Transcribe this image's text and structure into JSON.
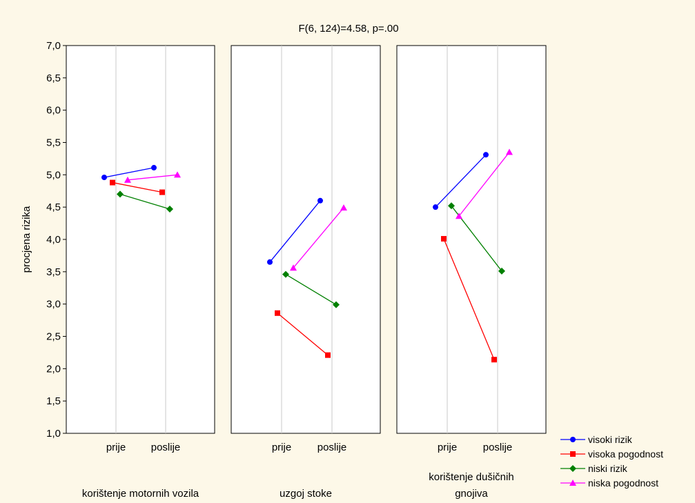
{
  "chart_data": {
    "type": "line",
    "title": "F(6, 124)=4.58, p=.00",
    "ylabel": "procjena rizika",
    "ylim": [
      1.0,
      7.0
    ],
    "yticks": [
      "1,0",
      "1,5",
      "2,0",
      "2,5",
      "3,0",
      "3,5",
      "4,0",
      "4,5",
      "5,0",
      "5,5",
      "6,0",
      "6,5",
      "7,0"
    ],
    "grid": "vertical",
    "legend_position": "bottom-right",
    "categories": [
      "prije",
      "poslije"
    ],
    "panels": [
      {
        "label": "korištenje motornih vozila",
        "series": [
          {
            "name": "visoki rizik",
            "values": [
              4.96,
              5.11
            ]
          },
          {
            "name": "visoka pogodnost",
            "values": [
              4.88,
              4.73
            ]
          },
          {
            "name": "niski rizik",
            "values": [
              4.7,
              4.47
            ]
          },
          {
            "name": "niska pogodnost",
            "values": [
              4.92,
              5.0
            ]
          }
        ]
      },
      {
        "label": "uzgoj stoke",
        "series": [
          {
            "name": "visoki rizik",
            "values": [
              3.65,
              4.6
            ]
          },
          {
            "name": "visoka pogodnost",
            "values": [
              2.86,
              2.21
            ]
          },
          {
            "name": "niski rizik",
            "values": [
              3.46,
              2.99
            ]
          },
          {
            "name": "niska pogodnost",
            "values": [
              3.56,
              4.49
            ]
          }
        ]
      },
      {
        "label": "korištenje dušičnih gnojiva",
        "series": [
          {
            "name": "visoki rizik",
            "values": [
              4.5,
              5.31
            ]
          },
          {
            "name": "visoka pogodnost",
            "values": [
              4.01,
              2.14
            ]
          },
          {
            "name": "niski rizik",
            "values": [
              4.52,
              3.51
            ]
          },
          {
            "name": "niska pogodnost",
            "values": [
              4.36,
              5.35
            ]
          }
        ]
      }
    ],
    "legend": [
      {
        "name": "visoki rizik",
        "color": "#0000ff",
        "marker": "circle"
      },
      {
        "name": "visoka pogodnost",
        "color": "#ff0000",
        "marker": "square"
      },
      {
        "name": "niski rizik",
        "color": "#008000",
        "marker": "diamond"
      },
      {
        "name": "niska pogodnost",
        "color": "#ff00ff",
        "marker": "triangle"
      }
    ]
  }
}
